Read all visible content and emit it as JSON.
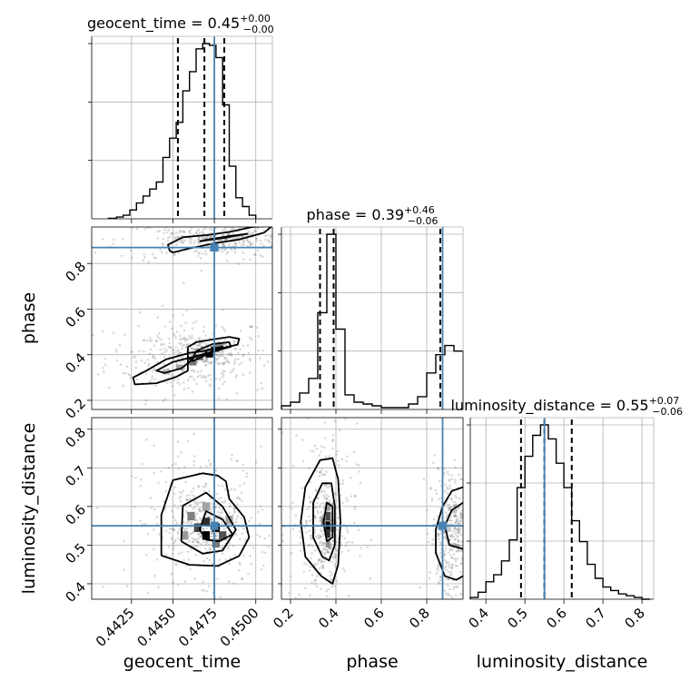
{
  "chart_data": {
    "type": "corner",
    "parameters": [
      "geocent_time",
      "phase",
      "luminosity_distance"
    ],
    "axis_labels": {
      "x": [
        "geocent_time",
        "phase",
        "luminosity_distance"
      ],
      "y": [
        "",
        "phase",
        "luminosity_distance"
      ]
    },
    "titles": [
      {
        "parameter": "geocent_time",
        "prefix": "geocent_time = ",
        "median": "0.45",
        "plus": "+0.00",
        "minus": "−0.00"
      },
      {
        "parameter": "phase",
        "prefix": "phase = ",
        "median": "0.39",
        "plus": "+0.46",
        "minus": "−0.06"
      },
      {
        "parameter": "luminosity_distance",
        "prefix": "luminosity_distance = ",
        "median": "0.55",
        "plus": "+0.07",
        "minus": "−0.06"
      }
    ],
    "truths": {
      "geocent_time": 0.4475,
      "phase": 0.87,
      "luminosity_distance": 0.55
    },
    "colors": {
      "truth": "#4682b4",
      "contour": "#000000",
      "histogram": "#000000",
      "grid": "#b0b0b0"
    },
    "grid": true,
    "ranges": {
      "geocent_time": [
        0.4401,
        0.451
      ],
      "phase": [
        0.16,
        0.96
      ],
      "luminosity_distance": [
        0.36,
        0.83
      ]
    },
    "ticks": {
      "geocent_time": {
        "values": [
          0.4425,
          0.445,
          0.4475,
          0.45
        ],
        "labels": [
          "0.4425",
          "0.4450",
          "0.4475",
          "0.4500"
        ]
      },
      "phase_x": {
        "values": [
          0.2,
          0.4,
          0.6,
          0.8
        ],
        "labels": [
          "0.2",
          "0.4",
          "0.6",
          "0.8"
        ]
      },
      "phase_y": {
        "values": [
          0.2,
          0.4,
          0.6,
          0.8
        ],
        "labels": [
          "0.2",
          "0.4",
          "0.6",
          "0.8"
        ]
      },
      "luminosity_distance_x": {
        "values": [
          0.4,
          0.5,
          0.6,
          0.7,
          0.8
        ],
        "labels": [
          "0.4",
          "0.5",
          "0.6",
          "0.7",
          "0.8"
        ]
      },
      "luminosity_distance_y": {
        "values": [
          0.4,
          0.5,
          0.6,
          0.7,
          0.8
        ],
        "labels": [
          "0.4",
          "0.5",
          "0.6",
          "0.7",
          "0.8"
        ]
      }
    },
    "histograms": {
      "geocent_time": {
        "edges": [
          0.4411,
          0.4416,
          0.442,
          0.4424,
          0.4428,
          0.4432,
          0.4436,
          0.444,
          0.4444,
          0.4448,
          0.4452,
          0.4456,
          0.446,
          0.4464,
          0.4468,
          0.4472,
          0.4476,
          0.448,
          0.4484,
          0.4488,
          0.4492,
          0.4496,
          0.45
        ],
        "counts": [
          0.003,
          0.01,
          0.02,
          0.05,
          0.09,
          0.13,
          0.17,
          0.21,
          0.35,
          0.46,
          0.55,
          0.73,
          0.84,
          0.97,
          1.0,
          0.99,
          0.92,
          0.65,
          0.3,
          0.12,
          0.07,
          0.02
        ],
        "quantiles": [
          0.4453,
          0.4469,
          0.4481
        ]
      },
      "phase": {
        "edges": [
          0.16,
          0.2,
          0.24,
          0.28,
          0.32,
          0.36,
          0.4,
          0.44,
          0.48,
          0.52,
          0.56,
          0.6,
          0.64,
          0.68,
          0.72,
          0.76,
          0.8,
          0.84,
          0.88,
          0.92,
          0.96
        ],
        "counts": [
          0.02,
          0.04,
          0.09,
          0.17,
          0.53,
          0.96,
          0.44,
          0.08,
          0.04,
          0.03,
          0.02,
          0.01,
          0.01,
          0.01,
          0.03,
          0.07,
          0.2,
          0.3,
          0.35,
          0.32
        ],
        "quantiles": [
          0.33,
          0.39,
          0.86
        ]
      },
      "luminosity_distance": {
        "edges": [
          0.36,
          0.38,
          0.4,
          0.42,
          0.44,
          0.46,
          0.48,
          0.5,
          0.52,
          0.54,
          0.56,
          0.58,
          0.6,
          0.62,
          0.64,
          0.66,
          0.68,
          0.7,
          0.72,
          0.74,
          0.76,
          0.78,
          0.8,
          0.82
        ],
        "counts": [
          0.01,
          0.04,
          0.1,
          0.14,
          0.22,
          0.34,
          0.64,
          0.82,
          0.94,
          1.0,
          0.92,
          0.78,
          0.64,
          0.45,
          0.33,
          0.2,
          0.12,
          0.07,
          0.05,
          0.03,
          0.02,
          0.01,
          0.0
        ],
        "quantiles": [
          0.49,
          0.55,
          0.62
        ]
      }
    },
    "contours_2d": [
      {
        "x": "geocent_time",
        "y": "phase",
        "levels": [
          [
            [
              0.4459,
              0.433
            ],
            [
              0.4464,
              0.455
            ],
            [
              0.4475,
              0.468
            ],
            [
              0.4484,
              0.478
            ],
            [
              0.449,
              0.47
            ],
            [
              0.4489,
              0.444
            ],
            [
              0.448,
              0.43
            ],
            [
              0.447,
              0.418
            ],
            [
              0.446,
              0.408
            ],
            [
              0.4446,
              0.38
            ],
            [
              0.4434,
              0.33
            ],
            [
              0.4426,
              0.3
            ],
            [
              0.4427,
              0.27
            ],
            [
              0.444,
              0.275
            ],
            [
              0.4452,
              0.303
            ],
            [
              0.4459,
              0.33
            ],
            [
              0.4459,
              0.433
            ]
          ],
          [
            [
              0.4464,
              0.416
            ],
            [
              0.4474,
              0.447
            ],
            [
              0.4484,
              0.455
            ],
            [
              0.4485,
              0.435
            ],
            [
              0.4476,
              0.418
            ],
            [
              0.4466,
              0.398
            ],
            [
              0.445,
              0.368
            ],
            [
              0.444,
              0.33
            ],
            [
              0.4445,
              0.32
            ],
            [
              0.4455,
              0.34
            ],
            [
              0.4462,
              0.38
            ],
            [
              0.4464,
              0.416
            ]
          ],
          [
            [
              0.447,
              0.42
            ],
            [
              0.448,
              0.436
            ],
            [
              0.4478,
              0.42
            ],
            [
              0.447,
              0.405
            ],
            [
              0.446,
              0.382
            ],
            [
              0.4462,
              0.372
            ],
            [
              0.447,
              0.4
            ],
            [
              0.447,
              0.42
            ]
          ],
          [
            [
              0.445,
              0.848
            ],
            [
              0.446,
              0.866
            ],
            [
              0.4476,
              0.89
            ],
            [
              0.449,
              0.905
            ],
            [
              0.4505,
              0.935
            ],
            [
              0.451,
              0.965
            ],
            [
              0.4498,
              0.96
            ],
            [
              0.4484,
              0.938
            ],
            [
              0.447,
              0.924
            ],
            [
              0.4456,
              0.915
            ],
            [
              0.4447,
              0.882
            ],
            [
              0.4448,
              0.856
            ],
            [
              0.445,
              0.848
            ]
          ],
          [
            [
              0.4466,
              0.897
            ],
            [
              0.4482,
              0.914
            ],
            [
              0.4495,
              0.93
            ],
            [
              0.4484,
              0.92
            ],
            [
              0.447,
              0.903
            ],
            [
              0.4466,
              0.897
            ]
          ]
        ],
        "cells": [
          {
            "x": 0.4472,
            "y": 0.4,
            "w": 0.00045,
            "h": 0.024,
            "v": 1.0
          },
          {
            "x": 0.4475,
            "y": 0.425,
            "w": 0.00045,
            "h": 0.024,
            "v": 0.75
          },
          {
            "x": 0.4466,
            "y": 0.388,
            "w": 0.00045,
            "h": 0.024,
            "v": 0.6
          },
          {
            "x": 0.4462,
            "y": 0.365,
            "w": 0.00045,
            "h": 0.024,
            "v": 0.5
          },
          {
            "x": 0.4478,
            "y": 0.44,
            "w": 0.00045,
            "h": 0.024,
            "v": 0.45
          },
          {
            "x": 0.4454,
            "y": 0.345,
            "w": 0.00045,
            "h": 0.024,
            "v": 0.3
          },
          {
            "x": 0.4446,
            "y": 0.325,
            "w": 0.00045,
            "h": 0.024,
            "v": 0.2
          }
        ]
      },
      {
        "x": "geocent_time",
        "y": "luminosity_distance",
        "levels": [
          [
            [
              0.4443,
              0.473
            ],
            [
              0.4443,
              0.52
            ],
            [
              0.4443,
              0.578
            ],
            [
              0.445,
              0.668
            ],
            [
              0.4468,
              0.686
            ],
            [
              0.4477,
              0.68
            ],
            [
              0.4482,
              0.665
            ],
            [
              0.4484,
              0.62
            ],
            [
              0.4493,
              0.572
            ],
            [
              0.4496,
              0.52
            ],
            [
              0.449,
              0.472
            ],
            [
              0.4477,
              0.446
            ],
            [
              0.446,
              0.449
            ],
            [
              0.4443,
              0.473
            ]
          ],
          [
            [
              0.4455,
              0.51
            ],
            [
              0.4456,
              0.602
            ],
            [
              0.447,
              0.636
            ],
            [
              0.448,
              0.6
            ],
            [
              0.4488,
              0.54
            ],
            [
              0.448,
              0.486
            ],
            [
              0.4468,
              0.478
            ],
            [
              0.4455,
              0.51
            ]
          ],
          [
            [
              0.4466,
              0.54
            ],
            [
              0.447,
              0.588
            ],
            [
              0.448,
              0.566
            ],
            [
              0.4486,
              0.528
            ],
            [
              0.4478,
              0.51
            ],
            [
              0.447,
              0.514
            ],
            [
              0.4466,
              0.54
            ]
          ]
        ],
        "cells": [
          {
            "x": 0.447,
            "y": 0.525,
            "w": 0.00045,
            "h": 0.022,
            "v": 1.0
          },
          {
            "x": 0.4476,
            "y": 0.545,
            "w": 0.00045,
            "h": 0.022,
            "v": 0.95
          },
          {
            "x": 0.447,
            "y": 0.56,
            "w": 0.00045,
            "h": 0.022,
            "v": 0.8
          },
          {
            "x": 0.4465,
            "y": 0.545,
            "w": 0.00045,
            "h": 0.022,
            "v": 0.7
          },
          {
            "x": 0.448,
            "y": 0.525,
            "w": 0.00045,
            "h": 0.022,
            "v": 0.65
          },
          {
            "x": 0.4461,
            "y": 0.575,
            "w": 0.00045,
            "h": 0.022,
            "v": 0.45
          },
          {
            "x": 0.4476,
            "y": 0.505,
            "w": 0.00045,
            "h": 0.022,
            "v": 0.5
          },
          {
            "x": 0.4457,
            "y": 0.525,
            "w": 0.00045,
            "h": 0.022,
            "v": 0.35
          },
          {
            "x": 0.447,
            "y": 0.6,
            "w": 0.00045,
            "h": 0.022,
            "v": 0.3
          },
          {
            "x": 0.4484,
            "y": 0.565,
            "w": 0.00045,
            "h": 0.022,
            "v": 0.3
          }
        ]
      },
      {
        "x": "phase",
        "y": "luminosity_distance",
        "levels": [
          [
            [
              0.335,
              0.42
            ],
            [
              0.265,
              0.47
            ],
            [
              0.245,
              0.56
            ],
            [
              0.265,
              0.65
            ],
            [
              0.33,
              0.72
            ],
            [
              0.385,
              0.725
            ],
            [
              0.41,
              0.67
            ],
            [
              0.42,
              0.56
            ],
            [
              0.41,
              0.45
            ],
            [
              0.385,
              0.4
            ],
            [
              0.335,
              0.42
            ]
          ],
          [
            [
              0.34,
              0.47
            ],
            [
              0.3,
              0.52
            ],
            [
              0.3,
              0.61
            ],
            [
              0.34,
              0.66
            ],
            [
              0.38,
              0.66
            ],
            [
              0.395,
              0.6
            ],
            [
              0.395,
              0.5
            ],
            [
              0.37,
              0.46
            ],
            [
              0.34,
              0.47
            ]
          ],
          [
            [
              0.36,
              0.51
            ],
            [
              0.345,
              0.56
            ],
            [
              0.36,
              0.61
            ],
            [
              0.385,
              0.6
            ],
            [
              0.385,
              0.52
            ],
            [
              0.36,
              0.51
            ]
          ],
          [
            [
              0.96,
              0.65
            ],
            [
              0.91,
              0.64
            ],
            [
              0.87,
              0.6
            ],
            [
              0.84,
              0.54
            ],
            [
              0.84,
              0.48
            ],
            [
              0.88,
              0.42
            ],
            [
              0.93,
              0.41
            ],
            [
              0.96,
              0.42
            ]
          ],
          [
            [
              0.96,
              0.61
            ],
            [
              0.91,
              0.59
            ],
            [
              0.88,
              0.55
            ],
            [
              0.9,
              0.5
            ],
            [
              0.96,
              0.49
            ]
          ]
        ],
        "cells": [
          {
            "x": 0.365,
            "y": 0.55,
            "w": 0.02,
            "h": 0.022,
            "v": 1.0
          },
          {
            "x": 0.365,
            "y": 0.53,
            "w": 0.02,
            "h": 0.022,
            "v": 0.8
          },
          {
            "x": 0.365,
            "y": 0.575,
            "w": 0.02,
            "h": 0.022,
            "v": 0.7
          },
          {
            "x": 0.345,
            "y": 0.56,
            "w": 0.02,
            "h": 0.022,
            "v": 0.45
          },
          {
            "x": 0.385,
            "y": 0.545,
            "w": 0.02,
            "h": 0.022,
            "v": 0.4
          },
          {
            "x": 0.365,
            "y": 0.505,
            "w": 0.02,
            "h": 0.022,
            "v": 0.4
          },
          {
            "x": 0.365,
            "y": 0.6,
            "w": 0.02,
            "h": 0.022,
            "v": 0.35
          },
          {
            "x": 0.895,
            "y": 0.545,
            "w": 0.02,
            "h": 0.022,
            "v": 0.15
          }
        ]
      }
    ]
  }
}
